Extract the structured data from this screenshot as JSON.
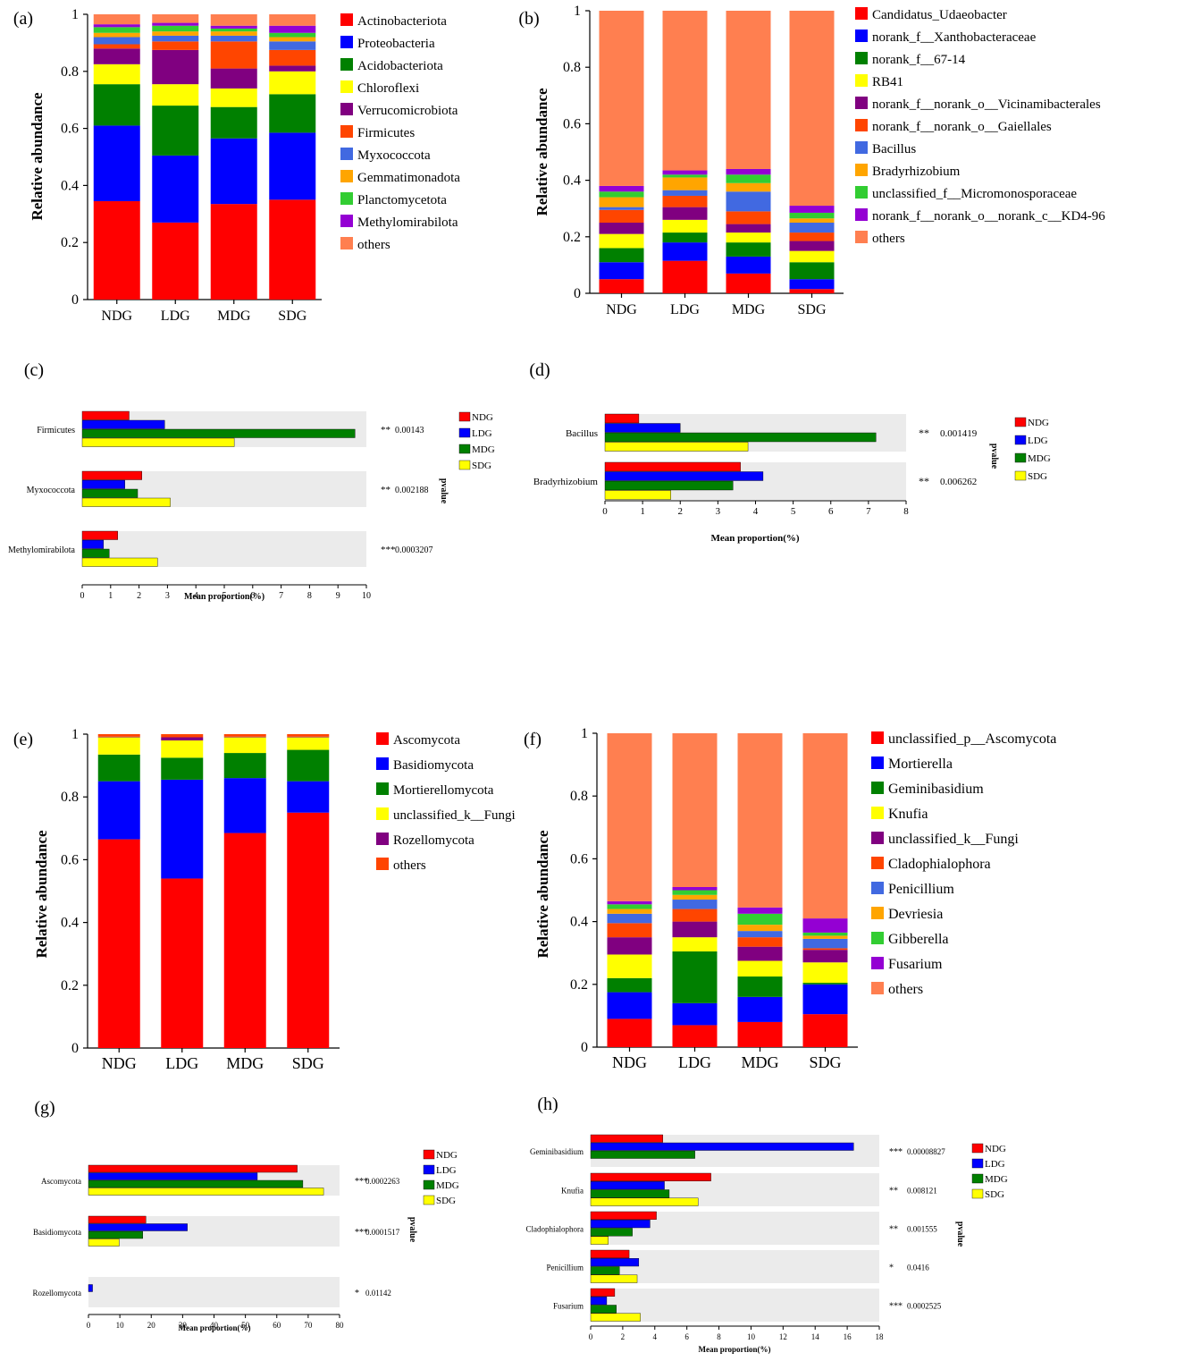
{
  "chart_data": [
    {
      "panel": "(a)",
      "type": "stacked-bar",
      "title": "",
      "xlabel": "",
      "ylabel": "Relative abundance",
      "ylim": [
        0,
        1
      ],
      "yticks": [
        "0",
        "0.2",
        "0.4",
        "0.6",
        "0.8",
        "1"
      ],
      "categories": [
        "NDG",
        "LDG",
        "MDG",
        "SDG"
      ],
      "series": [
        {
          "name": "Actinobacteriota",
          "color": "#ff0000",
          "values": [
            0.345,
            0.27,
            0.335,
            0.35
          ]
        },
        {
          "name": "Proteobacteria",
          "color": "#0000ff",
          "values": [
            0.265,
            0.235,
            0.23,
            0.235
          ]
        },
        {
          "name": "Acidobacteriota",
          "color": "#008000",
          "values": [
            0.145,
            0.175,
            0.11,
            0.135
          ]
        },
        {
          "name": "Chloroflexi",
          "color": "#ffff00",
          "values": [
            0.07,
            0.075,
            0.065,
            0.08
          ]
        },
        {
          "name": "Verrucomicrobiota",
          "color": "#800080",
          "values": [
            0.055,
            0.12,
            0.07,
            0.02
          ]
        },
        {
          "name": "Firmicutes",
          "color": "#ff4500",
          "values": [
            0.015,
            0.03,
            0.095,
            0.055
          ]
        },
        {
          "name": "Myxococcota",
          "color": "#4169e1",
          "values": [
            0.025,
            0.02,
            0.02,
            0.03
          ]
        },
        {
          "name": "Gemmatimonadota",
          "color": "#ffa500",
          "values": [
            0.015,
            0.015,
            0.015,
            0.015
          ]
        },
        {
          "name": "Planctomycetota",
          "color": "#32cd32",
          "values": [
            0.02,
            0.02,
            0.01,
            0.015
          ]
        },
        {
          "name": "Methylomirabilota",
          "color": "#9400d3",
          "values": [
            0.01,
            0.01,
            0.01,
            0.025
          ]
        },
        {
          "name": "others",
          "color": "#ff7f50",
          "values": [
            0.035,
            0.03,
            0.04,
            0.04
          ]
        }
      ]
    },
    {
      "panel": "(b)",
      "type": "stacked-bar",
      "title": "",
      "xlabel": "",
      "ylabel": "Relative abundance",
      "ylim": [
        0,
        1
      ],
      "yticks": [
        "0",
        "0.2",
        "0.4",
        "0.6",
        "0.8",
        "1"
      ],
      "categories": [
        "NDG",
        "LDG",
        "MDG",
        "SDG"
      ],
      "series": [
        {
          "name": "Candidatus_Udaeobacter",
          "color": "#ff0000",
          "values": [
            0.05,
            0.115,
            0.07,
            0.015
          ]
        },
        {
          "name": "norank_f__Xanthobacteraceae",
          "color": "#0000ff",
          "values": [
            0.06,
            0.065,
            0.06,
            0.035
          ]
        },
        {
          "name": "norank_f__67-14",
          "color": "#008000",
          "values": [
            0.05,
            0.035,
            0.05,
            0.06
          ]
        },
        {
          "name": "RB41",
          "color": "#ffff00",
          "values": [
            0.05,
            0.045,
            0.035,
            0.04
          ]
        },
        {
          "name": "norank_f__norank_o__Vicinamibacterales",
          "color": "#800080",
          "values": [
            0.04,
            0.045,
            0.03,
            0.035
          ]
        },
        {
          "name": "norank_f__norank_o__Gaiellales",
          "color": "#ff4500",
          "values": [
            0.045,
            0.04,
            0.045,
            0.03
          ]
        },
        {
          "name": "Bacillus",
          "color": "#4169e1",
          "values": [
            0.01,
            0.02,
            0.07,
            0.035
          ]
        },
        {
          "name": "Bradyrhizobium",
          "color": "#ffa500",
          "values": [
            0.035,
            0.045,
            0.03,
            0.015
          ]
        },
        {
          "name": "unclassified_f__Micromonosporaceae",
          "color": "#32cd32",
          "values": [
            0.02,
            0.01,
            0.03,
            0.02
          ]
        },
        {
          "name": "norank_f__norank_o__norank_c__KD4-96",
          "color": "#9400d3",
          "values": [
            0.02,
            0.015,
            0.02,
            0.025
          ]
        },
        {
          "name": "others",
          "color": "#ff7f50",
          "values": [
            0.62,
            0.565,
            0.56,
            0.69
          ]
        }
      ]
    },
    {
      "panel": "(c)",
      "type": "grouped-hbar",
      "xlabel": "Mean proportion(%)",
      "xlim": [
        0,
        10
      ],
      "xticks": [
        "0",
        "1",
        "2",
        "3",
        "4",
        "5",
        "6",
        "7",
        "8",
        "9",
        "10"
      ],
      "pvalue_label": "pvalue",
      "categories": [
        "Firmicutes",
        "Myxococcota",
        "Methylomirabilota"
      ],
      "stars": [
        "**",
        "**",
        "***"
      ],
      "pvalues": [
        "0.00143",
        "0.002188",
        "0.0003207"
      ],
      "series": [
        {
          "name": "NDG",
          "color": "#ff0000",
          "values": [
            1.65,
            2.1,
            1.25
          ]
        },
        {
          "name": "LDG",
          "color": "#0000ff",
          "values": [
            2.9,
            1.5,
            0.75
          ]
        },
        {
          "name": "MDG",
          "color": "#008000",
          "values": [
            9.6,
            1.95,
            0.95
          ]
        },
        {
          "name": "SDG",
          "color": "#ffff00",
          "values": [
            5.35,
            3.1,
            2.65
          ]
        }
      ]
    },
    {
      "panel": "(d)",
      "type": "grouped-hbar",
      "xlabel": "Mean proportion(%)",
      "xlim": [
        0,
        8
      ],
      "xticks": [
        "0",
        "1",
        "2",
        "3",
        "4",
        "5",
        "6",
        "7",
        "8"
      ],
      "pvalue_label": "pvalue",
      "categories": [
        "Bacillus",
        "Bradyrhizobium"
      ],
      "stars": [
        "**",
        "**"
      ],
      "pvalues": [
        "0.001419",
        "0.006262"
      ],
      "series": [
        {
          "name": "NDG",
          "color": "#ff0000",
          "values": [
            0.9,
            3.6
          ]
        },
        {
          "name": "LDG",
          "color": "#0000ff",
          "values": [
            2.0,
            4.2
          ]
        },
        {
          "name": "MDG",
          "color": "#008000",
          "values": [
            7.2,
            3.4
          ]
        },
        {
          "name": "SDG",
          "color": "#ffff00",
          "values": [
            3.8,
            1.75
          ]
        }
      ]
    },
    {
      "panel": "(e)",
      "type": "stacked-bar",
      "title": "",
      "xlabel": "",
      "ylabel": "Relative abundance",
      "ylim": [
        0,
        1
      ],
      "yticks": [
        "0",
        "0.2",
        "0.4",
        "0.6",
        "0.8",
        "1"
      ],
      "categories": [
        "NDG",
        "LDG",
        "MDG",
        "SDG"
      ],
      "series": [
        {
          "name": "Ascomycota",
          "color": "#ff0000",
          "values": [
            0.665,
            0.54,
            0.685,
            0.75
          ]
        },
        {
          "name": "Basidiomycota",
          "color": "#0000ff",
          "values": [
            0.185,
            0.315,
            0.175,
            0.1
          ]
        },
        {
          "name": "Mortierellomycota",
          "color": "#008000",
          "values": [
            0.085,
            0.07,
            0.08,
            0.1
          ]
        },
        {
          "name": "unclassified_k__Fungi",
          "color": "#ffff00",
          "values": [
            0.055,
            0.055,
            0.05,
            0.04
          ]
        },
        {
          "name": "Rozellomycota",
          "color": "#800080",
          "values": [
            0.002,
            0.01,
            0.002,
            0.002
          ]
        },
        {
          "name": "others",
          "color": "#ff4500",
          "values": [
            0.008,
            0.01,
            0.008,
            0.008
          ]
        }
      ]
    },
    {
      "panel": "(f)",
      "type": "stacked-bar",
      "title": "",
      "xlabel": "",
      "ylabel": "Relative abundance",
      "ylim": [
        0,
        1
      ],
      "yticks": [
        "0",
        "0.2",
        "0.4",
        "0.6",
        "0.8",
        "1"
      ],
      "categories": [
        "NDG",
        "LDG",
        "MDG",
        "SDG"
      ],
      "series": [
        {
          "name": "unclassified_p__Ascomycota",
          "color": "#ff0000",
          "values": [
            0.09,
            0.07,
            0.08,
            0.105
          ]
        },
        {
          "name": "Mortierella",
          "color": "#0000ff",
          "values": [
            0.085,
            0.07,
            0.08,
            0.095
          ]
        },
        {
          "name": "Geminibasidium",
          "color": "#008000",
          "values": [
            0.045,
            0.165,
            0.065,
            0.005
          ]
        },
        {
          "name": "Knufia",
          "color": "#ffff00",
          "values": [
            0.075,
            0.045,
            0.05,
            0.065
          ]
        },
        {
          "name": "unclassified_k__Fungi",
          "color": "#800080",
          "values": [
            0.055,
            0.05,
            0.045,
            0.04
          ]
        },
        {
          "name": "Cladophialophora",
          "color": "#ff4500",
          "values": [
            0.045,
            0.04,
            0.03,
            0.005
          ]
        },
        {
          "name": "Penicillium",
          "color": "#4169e1",
          "values": [
            0.03,
            0.03,
            0.02,
            0.03
          ]
        },
        {
          "name": "Devriesia",
          "color": "#ffa500",
          "values": [
            0.015,
            0.015,
            0.02,
            0.01
          ]
        },
        {
          "name": "Gibberella",
          "color": "#32cd32",
          "values": [
            0.015,
            0.015,
            0.035,
            0.01
          ]
        },
        {
          "name": "Fusarium",
          "color": "#9400d3",
          "values": [
            0.01,
            0.01,
            0.02,
            0.045
          ]
        },
        {
          "name": "others",
          "color": "#ff7f50",
          "values": [
            0.535,
            0.49,
            0.555,
            0.59
          ]
        }
      ]
    },
    {
      "panel": "(g)",
      "type": "grouped-hbar",
      "xlabel": "Mean proportion(%)",
      "xlim": [
        0,
        80
      ],
      "xticks": [
        "0",
        "10",
        "20",
        "30",
        "40",
        "50",
        "60",
        "70",
        "80"
      ],
      "pvalue_label": "pvalue",
      "categories": [
        "Ascomycota",
        "Basidiomycota",
        "Rozellomycota"
      ],
      "stars": [
        "***",
        "***",
        "*"
      ],
      "pvalues": [
        "0.0002263",
        "0.0001517",
        "0.01142"
      ],
      "series": [
        {
          "name": "NDG",
          "color": "#ff0000",
          "values": [
            66.5,
            18.3,
            0
          ]
        },
        {
          "name": "LDG",
          "color": "#0000ff",
          "values": [
            53.8,
            31.5,
            1.3
          ]
        },
        {
          "name": "MDG",
          "color": "#008000",
          "values": [
            68.3,
            17.3,
            0
          ]
        },
        {
          "name": "SDG",
          "color": "#ffff00",
          "values": [
            74.9,
            9.8,
            0
          ]
        }
      ]
    },
    {
      "panel": "(h)",
      "type": "grouped-hbar",
      "xlabel": "Mean proportion(%)",
      "xlim": [
        0,
        18
      ],
      "xticks": [
        "0",
        "2",
        "4",
        "6",
        "8",
        "10",
        "12",
        "14",
        "16",
        "18"
      ],
      "pvalue_label": "pvalue",
      "categories": [
        "Geminibasidium",
        "Knufia",
        "Cladophialophora",
        "Penicillium",
        "Fusarium"
      ],
      "stars": [
        "***",
        "**",
        "**",
        "*",
        "***"
      ],
      "pvalues": [
        "0.00008827",
        "0.008121",
        "0.001555",
        "0.0416",
        "0.0002525"
      ],
      "series": [
        {
          "name": "NDG",
          "color": "#ff0000",
          "values": [
            4.5,
            7.5,
            4.1,
            2.4,
            1.5
          ]
        },
        {
          "name": "LDG",
          "color": "#0000ff",
          "values": [
            16.4,
            4.6,
            3.7,
            3.0,
            1.0
          ]
        },
        {
          "name": "MDG",
          "color": "#008000",
          "values": [
            6.5,
            4.9,
            2.6,
            1.8,
            1.6
          ]
        },
        {
          "name": "SDG",
          "color": "#ffff00",
          "values": [
            0.0,
            6.7,
            1.1,
            2.9,
            3.1
          ]
        }
      ]
    }
  ]
}
